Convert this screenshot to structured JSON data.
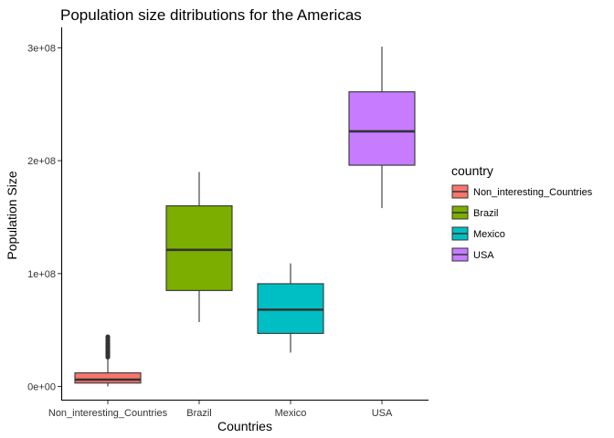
{
  "chart_data": {
    "type": "boxplot",
    "title": "Population size ditributions for the Americas",
    "xlabel": "Countries",
    "ylabel": "Population Size",
    "ylim": [
      -5000000,
      305000000
    ],
    "yticks": [
      0,
      100000000,
      200000000,
      300000000
    ],
    "ytick_labels": [
      "0e+00",
      "1e+08",
      "2e+08",
      "3e+08"
    ],
    "categories": [
      "Non_interesting_Countries",
      "Brazil",
      "Mexico",
      "USA"
    ],
    "boxes": [
      {
        "category": "Non_interesting_Countries",
        "whisker_low": 0,
        "q1": 3000000,
        "median": 6000000,
        "q3": 12000000,
        "whisker_high": 24000000,
        "color": "#F8766D",
        "outliers": [
          26000000,
          27500000,
          29000000,
          30500000,
          32000000,
          33500000,
          35000000,
          36500000,
          38000000,
          40000000,
          42000000,
          44000000
        ]
      },
      {
        "category": "Brazil",
        "whisker_low": 57000000,
        "q1": 85000000,
        "median": 121000000,
        "q3": 160000000,
        "whisker_high": 190000000,
        "color": "#7CAE00",
        "outliers": []
      },
      {
        "category": "Mexico",
        "whisker_low": 30000000,
        "q1": 47000000,
        "median": 68000000,
        "q3": 91000000,
        "whisker_high": 109000000,
        "color": "#00BFC4",
        "outliers": []
      },
      {
        "category": "USA",
        "whisker_low": 158000000,
        "q1": 196000000,
        "median": 226000000,
        "q3": 261000000,
        "whisker_high": 301000000,
        "color": "#C77CFF",
        "outliers": []
      }
    ],
    "legend": {
      "title": "country",
      "position": "right",
      "entries": [
        {
          "label": "Non_interesting_Countries",
          "color": "#F8766D"
        },
        {
          "label": "Brazil",
          "color": "#7CAE00"
        },
        {
          "label": "Mexico",
          "color": "#00BFC4"
        },
        {
          "label": "USA",
          "color": "#C77CFF"
        }
      ]
    },
    "grid": false
  }
}
